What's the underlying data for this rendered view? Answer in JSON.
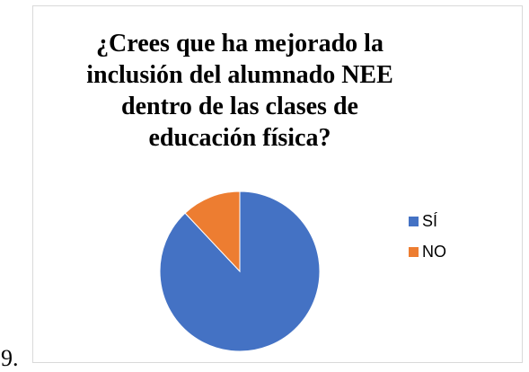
{
  "item_number": "9.",
  "chart_data": {
    "type": "pie",
    "title_lines": [
      "¿Crees que ha mejorado la",
      "inclusión del alumnado NEE",
      "dentro de las clases de",
      "educación física?"
    ],
    "categories": [
      "SÍ",
      "NO"
    ],
    "values": [
      88,
      12
    ],
    "colors": [
      "#4472C4",
      "#ED7D31"
    ],
    "legend_position": "right",
    "start_angle": "12 o'clock, clockwise"
  }
}
